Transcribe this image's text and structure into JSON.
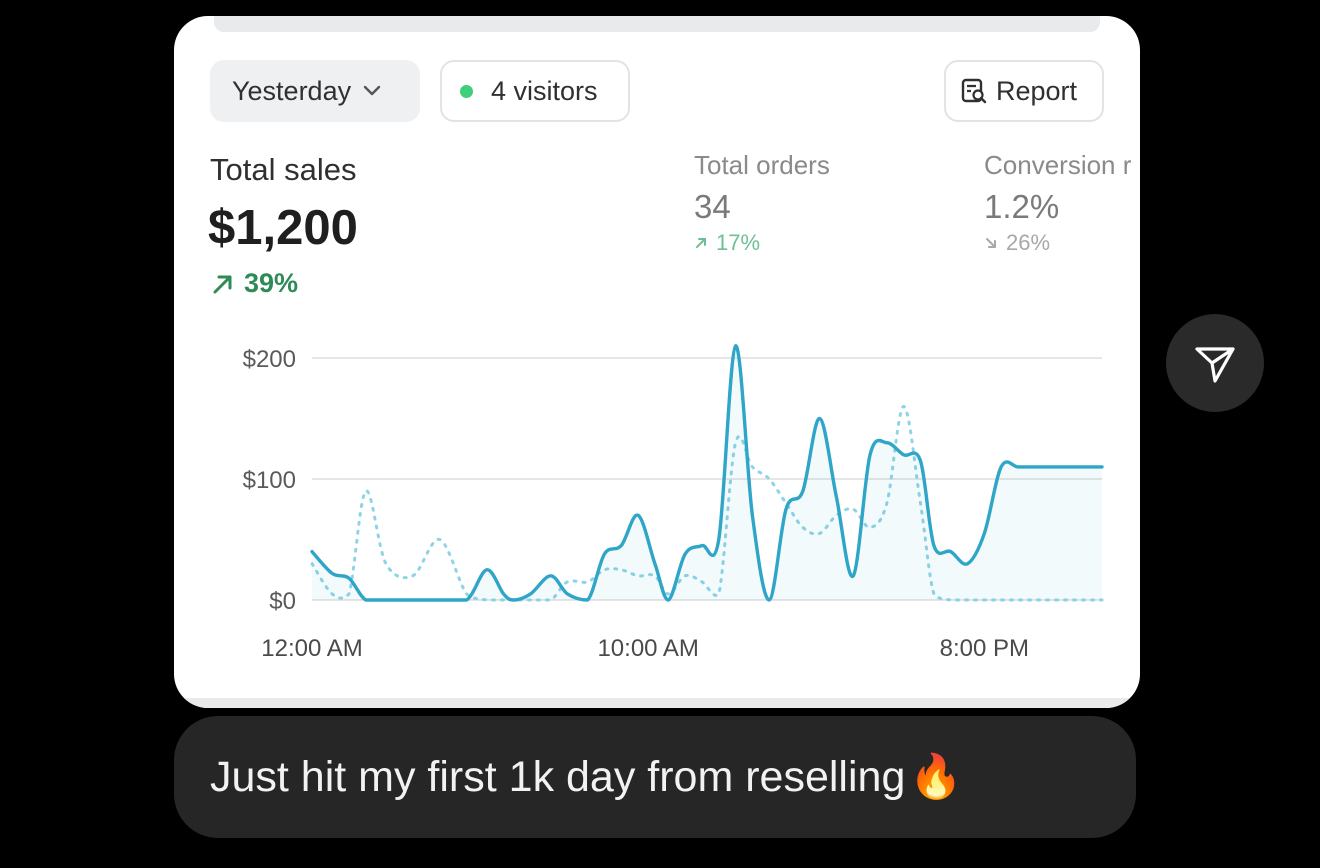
{
  "header": {
    "date_range": "Yesterday",
    "visitors": "4 visitors",
    "report_label": "Report",
    "visitor_dot_color": "#3ecf7a"
  },
  "metrics": {
    "total_sales": {
      "label": "Total sales",
      "value": "$1,200",
      "trend": "39%",
      "direction": "up"
    },
    "total_orders": {
      "label": "Total orders",
      "value": "34",
      "trend": "17%",
      "direction": "up"
    },
    "conversion": {
      "label": "Conversion r",
      "value": "1.2%",
      "trend": "26%",
      "direction": "down"
    }
  },
  "chart_data": {
    "type": "line",
    "ylim": [
      0,
      200
    ],
    "y_ticks": [
      "$0",
      "$100",
      "$200"
    ],
    "x_ticks": [
      "12:00 AM",
      "10:00 AM",
      "8:00 PM"
    ],
    "x_tick_hours": [
      0,
      10,
      20
    ],
    "xlim": [
      0,
      23.5
    ],
    "series": [
      {
        "role": "current",
        "color": "#2fa5c8",
        "style": "solid",
        "x": [
          0,
          0.6,
          1.1,
          1.6,
          2.2,
          3.0,
          3.8,
          4.6,
          5.2,
          5.7,
          6.0,
          6.5,
          7.1,
          7.6,
          8.2,
          8.7,
          9.2,
          9.7,
          10.2,
          10.6,
          11.1,
          11.6,
          12.1,
          12.6,
          13.1,
          13.6,
          14.1,
          14.6,
          15.1,
          15.6,
          16.1,
          16.6,
          17.1,
          17.6,
          18.1,
          18.5,
          19.0,
          19.5,
          20.0,
          20.5,
          21.0,
          21.5,
          22.0,
          22.5,
          23.0,
          23.5
        ],
        "values": [
          40,
          22,
          18,
          0,
          0,
          0,
          0,
          0,
          25,
          5,
          0,
          5,
          20,
          5,
          0,
          38,
          45,
          70,
          30,
          0,
          38,
          45,
          50,
          210,
          70,
          0,
          75,
          90,
          150,
          85,
          20,
          120,
          130,
          120,
          115,
          45,
          40,
          30,
          55,
          110,
          110,
          110,
          110,
          110,
          110,
          110
        ]
      },
      {
        "role": "previous",
        "color": "#8fd3e6",
        "style": "dotted",
        "x": [
          0,
          0.6,
          1.1,
          1.6,
          2.2,
          3.0,
          3.8,
          4.6,
          5.2,
          5.7,
          6.0,
          6.5,
          7.1,
          7.6,
          8.2,
          8.7,
          9.2,
          9.7,
          10.2,
          10.6,
          11.1,
          11.6,
          12.1,
          12.6,
          13.1,
          13.6,
          14.1,
          14.6,
          15.1,
          15.6,
          16.1,
          16.6,
          17.1,
          17.6,
          18.1,
          18.5,
          19.0,
          19.5,
          20.0,
          20.5,
          21.0,
          21.5,
          22.0,
          22.5,
          23.0,
          23.5
        ],
        "values": [
          30,
          5,
          5,
          90,
          30,
          20,
          50,
          5,
          0,
          0,
          0,
          0,
          0,
          15,
          15,
          25,
          25,
          20,
          20,
          5,
          20,
          15,
          5,
          130,
          110,
          100,
          80,
          60,
          55,
          70,
          75,
          60,
          80,
          160,
          80,
          5,
          0,
          0,
          0,
          0,
          0,
          0,
          0,
          0,
          0,
          0
        ]
      }
    ]
  },
  "message": {
    "text": "Just hit my first 1k day from reselling",
    "emoji": "🔥"
  }
}
